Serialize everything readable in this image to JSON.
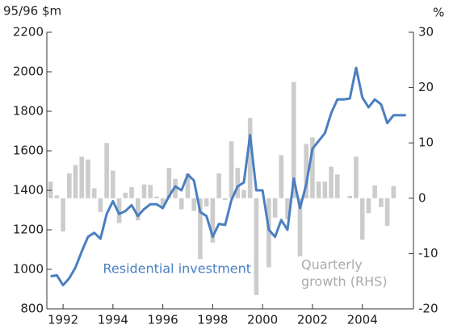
{
  "chart_data": {
    "type": "line",
    "y_label": "95/96 $m",
    "y2_label": "%",
    "annotations": [
      {
        "text": [
          "Residential investment"
        ],
        "color": "#4a7fc1",
        "x": 1993.6,
        "y": 1000
      },
      {
        "text": [
          "Quarterly",
          "growth (RHS)"
        ],
        "color": "#aaaaaa",
        "x": 2001.55,
        "y": 1020
      }
    ],
    "x": [
      1991.5,
      1991.75,
      1992,
      1992.25,
      1992.5,
      1992.75,
      1993,
      1993.25,
      1993.5,
      1993.75,
      1994,
      1994.25,
      1994.5,
      1994.75,
      1995,
      1995.25,
      1995.5,
      1995.75,
      1996,
      1996.25,
      1996.5,
      1996.75,
      1997,
      1997.25,
      1997.5,
      1997.75,
      1998,
      1998.25,
      1998.5,
      1998.75,
      1999,
      1999.25,
      1999.5,
      1999.75,
      2000,
      2000.25,
      2000.5,
      2000.75,
      2001,
      2001.25,
      2001.5,
      2001.75,
      2002,
      2002.25,
      2002.5,
      2002.75,
      2003,
      2003.25,
      2003.5,
      2003.75,
      2004,
      2004.25,
      2004.5,
      2004.75,
      2005,
      2005.25,
      2005.5,
      2005.75
    ],
    "series": [
      {
        "name": "Quarterly growth (RHS)",
        "type": "bar",
        "axis": "y2",
        "color": "#cccccc",
        "values": [
          3,
          0.5,
          -6,
          4.5,
          6,
          7.5,
          7,
          1.8,
          -2.5,
          10,
          5,
          -4.5,
          1,
          2,
          -4,
          2.5,
          2.4,
          0.3,
          -1.5,
          5.5,
          3.5,
          -2,
          4.5,
          -2.3,
          -11,
          -1.5,
          -8,
          4.5,
          -0.3,
          10.3,
          5.5,
          1.5,
          14.5,
          -17.5,
          0,
          -12.5,
          -3.5,
          7.8,
          -3.8,
          21,
          -10.5,
          9.8,
          11,
          3,
          3,
          5.7,
          4.3,
          0,
          0.4,
          7.5,
          -7.5,
          -2.7,
          2.3,
          -1.6,
          -5,
          2.2,
          0,
          0
        ]
      },
      {
        "name": "Residential investment",
        "type": "line",
        "axis": "y",
        "color": "#4a7fc1",
        "values": [
          965,
          970,
          920,
          955,
          1010,
          1090,
          1165,
          1185,
          1155,
          1280,
          1345,
          1280,
          1295,
          1325,
          1270,
          1305,
          1330,
          1330,
          1310,
          1370,
          1420,
          1400,
          1480,
          1450,
          1290,
          1270,
          1165,
          1230,
          1225,
          1350,
          1420,
          1440,
          1680,
          1400,
          1400,
          1200,
          1165,
          1250,
          1200,
          1460,
          1310,
          1430,
          1610,
          1650,
          1690,
          1790,
          1860,
          1860,
          1865,
          2020,
          1870,
          1820,
          1860,
          1835,
          1740,
          1780,
          1780,
          1780
        ]
      }
    ],
    "xlim": [
      1991.35,
      2006.05
    ],
    "xticks": [
      1992,
      1994,
      1996,
      1998,
      2000,
      2002,
      2004
    ],
    "ylim": [
      800,
      2200
    ],
    "yticks": [
      800,
      1000,
      1200,
      1400,
      1600,
      1800,
      2000,
      2200
    ],
    "y2lim": [
      -20,
      30
    ],
    "y2ticks": [
      -20,
      -10,
      0,
      10,
      20,
      30
    ]
  }
}
